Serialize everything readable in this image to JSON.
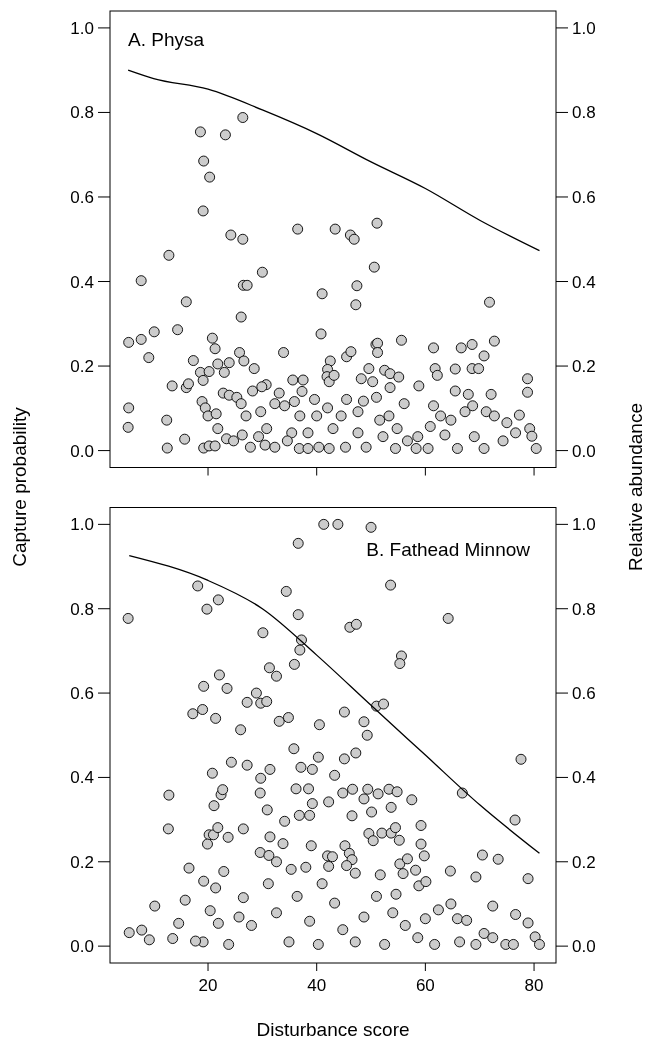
{
  "chart_data": [
    {
      "type": "scatter",
      "title": "A. Physa",
      "ylabel": "Capture probability",
      "y2label": "Relative abundance",
      "xlim": [
        1.96,
        84.04
      ],
      "xticks": [
        20,
        40,
        60,
        80
      ],
      "ylim": [
        -0.04,
        1.04
      ],
      "yticks": [
        {
          "value": 0,
          "label": "0.0"
        },
        {
          "value": 0.2,
          "label": "0.2"
        },
        {
          "value": 0.4,
          "label": "0.4"
        },
        {
          "value": 0.6,
          "label": "0.6"
        },
        {
          "value": 0.8,
          "label": "0.8"
        },
        {
          "value": 1,
          "label": "1.0"
        }
      ],
      "y2lim": [
        -0.04,
        1.04
      ],
      "y2ticks": [
        {
          "value": 0,
          "label": "0.0"
        },
        {
          "value": 0.2,
          "label": "0.2"
        },
        {
          "value": 0.4,
          "label": "0.4"
        },
        {
          "value": 0.6,
          "label": "0.6"
        },
        {
          "value": 0.8,
          "label": "0.8"
        },
        {
          "value": 1,
          "label": "1.0"
        }
      ],
      "tick_labels": "y",
      "series": [
        {
          "marker": "circle",
          "color": "#cccccc",
          "x": [
            5.4,
            5.4,
            5.3,
            7.7,
            7.7,
            9.1,
            10.1,
            12.8,
            13.4,
            12.4,
            12.5,
            14.4,
            16.0,
            16.0,
            16.4,
            15.7,
            17.3,
            18.6,
            19.2,
            20.3,
            19.1,
            18.6,
            19.1,
            20.2,
            20.8,
            21.3,
            18.9,
            19.5,
            20.0,
            19.2,
            20.2,
            21.3,
            21.5,
            21.8,
            21.8,
            23.2,
            23.0,
            23.9,
            24.2,
            22.8,
            23.9,
            23.4,
            26.4,
            26.4,
            26.5,
            27.2,
            26.1,
            25.8,
            26.6,
            30.0,
            28.5,
            25.3,
            26.1,
            27.0,
            28.2,
            26.3,
            27.8,
            30.7,
            29.9,
            29.7,
            30.8,
            30.5,
            33.1,
            32.3,
            33.9,
            34.1,
            32.3,
            35.4,
            36.5,
            35.6,
            37.5,
            37.3,
            35.9,
            36.9,
            36.8,
            38.4,
            39.6,
            40.0,
            41.0,
            40.8,
            40.4,
            42.5,
            42.0,
            41.9,
            42.3,
            43.2,
            42.0,
            43.4,
            43.0,
            42.3,
            45.5,
            46.2,
            46.9,
            47.4,
            47.2,
            45.5,
            46.3,
            44.5,
            45.3,
            47.6,
            48.2,
            49.6,
            48.6,
            50.6,
            51.1,
            50.9,
            51.2,
            51.2,
            50.3,
            51.0,
            49.1,
            51.6,
            52.5,
            53.5,
            53.5,
            55.1,
            55.6,
            56.1,
            53.3,
            54.8,
            54.5,
            56.7,
            58.8,
            58.6,
            58.3,
            61.5,
            61.8,
            62.2,
            61.5,
            60.9,
            60.5,
            62.8,
            65.5,
            65.5,
            66.6,
            67.9,
            68.6,
            68.6,
            69.8,
            70.8,
            71.8,
            72.7,
            72.1,
            68.7,
            67.3,
            64.7,
            63.6,
            65.9,
            70.8,
            71.2,
            72.7,
            75.0,
            77.3,
            76.6,
            78.8,
            78.8,
            79.2,
            79.6,
            80.4,
            74.3,
            69.0,
            47.6,
            34.6,
            29.3,
            24.7,
            38.4,
            52.2
          ],
          "values": [
            0.256,
            0.101,
            0.055,
            0.402,
            0.263,
            0.22,
            0.281,
            0.462,
            0.153,
            0.072,
            0.006,
            0.286,
            0.352,
            0.149,
            0.158,
            0.027,
            0.213,
            0.754,
            0.685,
            0.647,
            0.567,
            0.185,
            0.166,
            0.187,
            0.266,
            0.241,
            0.116,
            0.101,
            0.082,
            0.006,
            0.011,
            0.011,
            0.087,
            0.052,
            0.205,
            0.747,
            0.185,
            0.208,
            0.51,
            0.136,
            0.131,
            0.028,
            0.788,
            0.5,
            0.391,
            0.391,
            0.316,
            0.232,
            0.212,
            0.422,
            0.194,
            0.126,
            0.111,
            0.082,
            0.141,
            0.037,
            0.008,
            0.156,
            0.151,
            0.092,
            0.052,
            0.013,
            0.136,
            0.111,
            0.232,
            0.106,
            0.008,
            0.042,
            0.524,
            0.167,
            0.167,
            0.14,
            0.116,
            0.082,
            0.005,
            0.042,
            0.121,
            0.082,
            0.371,
            0.276,
            0.008,
            0.212,
            0.192,
            0.175,
            0.163,
            0.178,
            0.101,
            0.524,
            0.052,
            0.005,
            0.121,
            0.51,
            0.5,
            0.39,
            0.345,
            0.222,
            0.234,
            0.082,
            0.008,
            0.092,
            0.17,
            0.194,
            0.117,
            0.434,
            0.538,
            0.251,
            0.254,
            0.232,
            0.163,
            0.126,
            0.008,
            0.072,
            0.19,
            0.182,
            0.149,
            0.174,
            0.261,
            0.111,
            0.082,
            0.052,
            0.005,
            0.023,
            0.153,
            0.033,
            0.005,
            0.243,
            0.194,
            0.178,
            0.106,
            0.057,
            0.005,
            0.082,
            0.193,
            0.141,
            0.243,
            0.133,
            0.251,
            0.194,
            0.194,
            0.224,
            0.351,
            0.259,
            0.133,
            0.106,
            0.092,
            0.072,
            0.037,
            0.005,
            0.005,
            0.092,
            0.082,
            0.066,
            0.084,
            0.042,
            0.17,
            0.138,
            0.052,
            0.034,
            0.005,
            0.023,
            0.033,
            0.042,
            0.023,
            0.033,
            0.023,
            0.005,
            0.033
          ]
        },
        {
          "type": "line",
          "color": "#000000",
          "x": [
            5.3,
            10,
            20,
            30,
            40,
            50,
            60,
            70,
            81
          ],
          "values": [
            0.9,
            0.88,
            0.855,
            0.806,
            0.75,
            0.683,
            0.62,
            0.545,
            0.473
          ]
        }
      ]
    },
    {
      "type": "scatter",
      "title": "B. Fathead Minnow",
      "xlabel": "Disturbance score",
      "xlim": [
        1.96,
        84.04
      ],
      "xticks": [
        20,
        40,
        60,
        80
      ],
      "ylim": [
        -0.04,
        1.04
      ],
      "yticks": [
        {
          "value": 0,
          "label": "0.0"
        },
        {
          "value": 0.2,
          "label": "0.2"
        },
        {
          "value": 0.4,
          "label": "0.4"
        },
        {
          "value": 0.6,
          "label": "0.6"
        },
        {
          "value": 0.8,
          "label": "0.8"
        },
        {
          "value": 1,
          "label": "1.0"
        }
      ],
      "y2lim": [
        -0.04,
        1.04
      ],
      "y2ticks": [
        {
          "value": 0,
          "label": "0.0"
        },
        {
          "value": 0.2,
          "label": "0.2"
        },
        {
          "value": 0.4,
          "label": "0.4"
        },
        {
          "value": 0.6,
          "label": "0.6"
        },
        {
          "value": 0.8,
          "label": "0.8"
        },
        {
          "value": 1,
          "label": "1.0"
        }
      ],
      "series": [
        {
          "marker": "circle",
          "color": "#cccccc",
          "x": [
            5.3,
            5.5,
            7.8,
            9.2,
            10.2,
            12.8,
            12.7,
            13.5,
            14.6,
            15.8,
            16.5,
            18.1,
            17.2,
            19.0,
            19.2,
            19.8,
            21.9,
            22.1,
            23.5,
            21.4,
            20.8,
            21.1,
            22.4,
            22.7,
            20.2,
            19.9,
            21.0,
            21.8,
            19.2,
            21.4,
            22.9,
            23.7,
            24.3,
            26.0,
            27.2,
            27.2,
            26.5,
            26.5,
            28.9,
            30.1,
            29.7,
            30.8,
            31.3,
            32.6,
            33.1,
            34.8,
            31.4,
            29.7,
            29.6,
            30.9,
            31.4,
            29.6,
            31.2,
            32.6,
            33.8,
            34.1,
            34.4,
            36.6,
            36.6,
            37.2,
            36.9,
            35.9,
            35.8,
            37.1,
            36.2,
            36.8,
            39.2,
            38.5,
            38.7,
            39.2,
            39.0,
            38.0,
            35.3,
            40.3,
            40.5,
            41.3,
            43.9,
            50.0,
            43.3,
            42.2,
            42.0,
            42.9,
            42.2,
            45.1,
            45.1,
            44.8,
            46.6,
            46.1,
            47.3,
            47.2,
            46.5,
            45.2,
            46.0,
            46.5,
            45.5,
            47.1,
            48.7,
            49.3,
            49.4,
            48.7,
            50.1,
            51.3,
            49.6,
            50.4,
            51.0,
            52.3,
            52.0,
            51.7,
            53.6,
            53.3,
            54.8,
            53.7,
            53.7,
            54.5,
            55.2,
            55.6,
            55.3,
            55.3,
            55.9,
            56.7,
            57.5,
            54.6,
            58.2,
            59.2,
            59.2,
            59.8,
            58.8,
            60.1,
            60.0,
            64.2,
            64.6,
            64.7,
            62.4,
            65.9,
            66.8,
            67.6,
            69.3,
            70.5,
            72.4,
            73.4,
            76.5,
            77.6,
            76.6,
            78.9,
            78.9,
            80.2,
            81.0,
            74.8,
            70.8,
            69.3,
            66.3,
            61.7,
            58.6,
            56.3,
            54.0,
            51.0,
            48.7,
            47.1,
            44.8,
            43.3,
            41.0,
            38.7,
            36.4,
            34.9,
            32.6,
            31.1,
            28.0,
            25.7,
            23.8,
            21.9,
            20.4,
            19.1,
            17.7,
            40.3,
            52.5,
            76.2,
            72.4
          ],
          "values": [
            0.777,
            0.032,
            0.038,
            0.015,
            0.095,
            0.358,
            0.278,
            0.018,
            0.054,
            0.109,
            0.185,
            0.854,
            0.551,
            0.561,
            0.616,
            0.799,
            0.821,
            0.643,
            0.611,
            0.54,
            0.41,
            0.333,
            0.359,
            0.371,
            0.264,
            0.242,
            0.264,
            0.281,
            0.154,
            0.138,
            0.177,
            0.258,
            0.436,
            0.513,
            0.578,
            0.429,
            0.278,
            0.115,
            0.6,
            0.743,
            0.576,
            0.58,
            0.66,
            0.64,
            0.533,
            0.542,
            0.419,
            0.398,
            0.363,
            0.323,
            0.259,
            0.222,
            0.215,
            0.2,
            0.243,
            0.296,
            0.841,
            0.955,
            0.786,
            0.726,
            0.702,
            0.668,
            0.468,
            0.424,
            0.373,
            0.31,
            0.419,
            0.373,
            0.31,
            0.338,
            0.238,
            0.187,
            0.182,
            0.448,
            0.525,
            1.0,
            1.0,
            0.993,
            0.405,
            0.342,
            0.214,
            0.212,
            0.189,
            0.555,
            0.444,
            0.363,
            0.372,
            0.756,
            0.763,
            0.458,
            0.309,
            0.238,
            0.22,
            0.205,
            0.191,
            0.173,
            0.532,
            0.5,
            0.372,
            0.349,
            0.318,
            0.361,
            0.267,
            0.25,
            0.569,
            0.574,
            0.268,
            0.169,
            0.856,
            0.372,
            0.366,
            0.329,
            0.268,
            0.281,
            0.251,
            0.688,
            0.67,
            0.195,
            0.172,
            0.207,
            0.347,
            0.123,
            0.18,
            0.286,
            0.242,
            0.214,
            0.143,
            0.153,
            0.065,
            0.777,
            0.178,
            0.1,
            0.086,
            0.065,
            0.363,
            0.061,
            0.164,
            0.216,
            0.095,
            0.206,
            0.299,
            0.443,
            0.075,
            0.16,
            0.055,
            0.022,
            0.004,
            0.004,
            0.03,
            0.004,
            0.01,
            0.004,
            0.02,
            0.049,
            0.079,
            0.118,
            0.069,
            0.01,
            0.039,
            0.102,
            0.148,
            0.059,
            0.118,
            0.01,
            0.079,
            0.148,
            0.049,
            0.069,
            0.004,
            0.054,
            0.084,
            0.01,
            0.012,
            0.004,
            0.004,
            0.004,
            0.02
          ]
        },
        {
          "type": "line",
          "color": "#000000",
          "x": [
            5.5,
            20,
            30,
            40,
            50,
            60,
            70,
            81
          ],
          "values": [
            0.926,
            0.867,
            0.8,
            0.69,
            0.571,
            0.453,
            0.335,
            0.22
          ]
        }
      ]
    }
  ]
}
